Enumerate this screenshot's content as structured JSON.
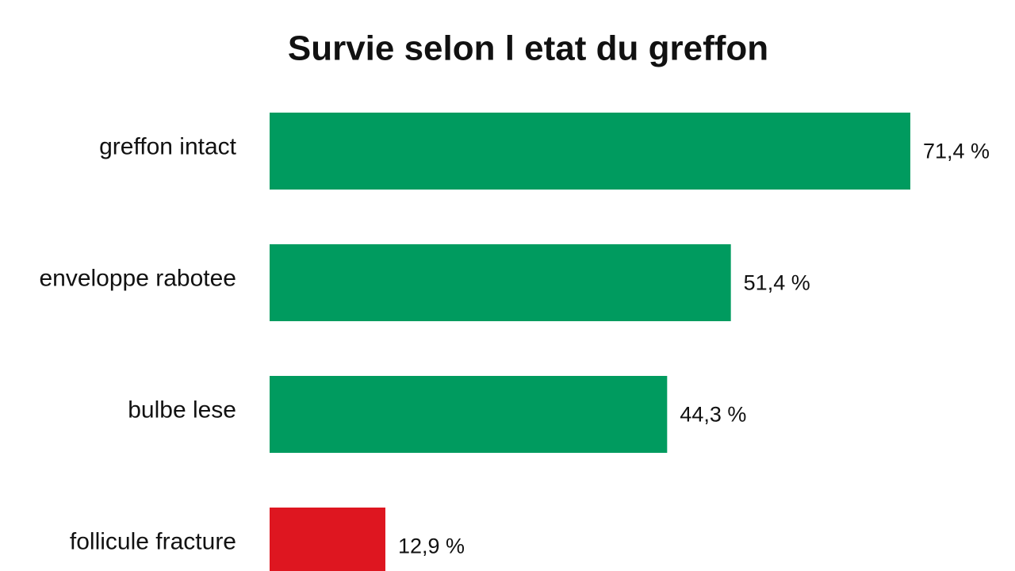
{
  "chart_data": {
    "type": "bar",
    "orientation": "horizontal",
    "title": "Survie selon l etat du greffon",
    "categories": [
      "greffon intact",
      "enveloppe rabotee",
      "bulbe lese",
      "follicule fracture"
    ],
    "values": [
      71.4,
      51.4,
      44.3,
      12.9
    ],
    "value_labels": [
      "71,4 %",
      "51,4 %",
      "44,3 %",
      "12,9 %"
    ],
    "colors": [
      "#009b5f",
      "#009b5f",
      "#009b5f",
      "#de1620"
    ]
  }
}
